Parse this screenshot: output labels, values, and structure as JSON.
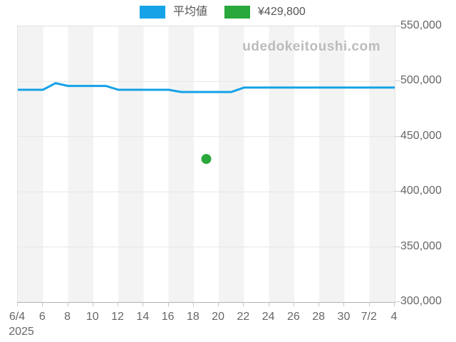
{
  "legend": {
    "average_label": "平均値",
    "average_color": "#15a2e6",
    "price_label": "¥429,800",
    "price_color": "#29a83b"
  },
  "watermark": "udedokeitoushi.com",
  "chart_data": {
    "type": "line",
    "title": "",
    "xlabel": "",
    "ylabel": "",
    "ylim": [
      300000,
      550000
    ],
    "y_ticks": [
      550000,
      500000,
      450000,
      400000,
      350000,
      300000
    ],
    "x_tick_labels": [
      "6/4",
      "6",
      "8",
      "10",
      "12",
      "14",
      "16",
      "18",
      "20",
      "22",
      "24",
      "26",
      "28",
      "30",
      "7/2",
      "4"
    ],
    "x_tick_day_step": 2,
    "x_range_days": 30,
    "year_sublabel": "2025",
    "grid": "horizontal",
    "background_stripes": {
      "band_days": 2,
      "color_a": "#f3f3f3",
      "color_b": "#ffffff"
    },
    "legend_position": "top",
    "series": [
      {
        "name": "平均値",
        "type": "line",
        "color": "#15a2e6",
        "x_day_index": [
          0,
          1,
          2,
          3,
          4,
          5,
          6,
          7,
          8,
          9,
          10,
          11,
          12,
          13,
          14,
          15,
          16,
          17,
          18,
          19,
          20,
          21,
          22,
          23,
          24,
          25,
          26,
          27,
          28,
          29,
          30
        ],
        "values": [
          492500,
          492500,
          492500,
          498500,
          496000,
          496000,
          496000,
          496000,
          492500,
          492500,
          492500,
          492500,
          492500,
          490500,
          490500,
          490500,
          490500,
          490500,
          494500,
          494500,
          494500,
          494500,
          494500,
          494500,
          494500,
          494500,
          494500,
          494500,
          494500,
          494500,
          494500
        ]
      },
      {
        "name": "¥429,800",
        "type": "scatter",
        "color": "#29a83b",
        "points": [
          {
            "x_day_index": 15,
            "value": 429800
          }
        ]
      }
    ]
  }
}
